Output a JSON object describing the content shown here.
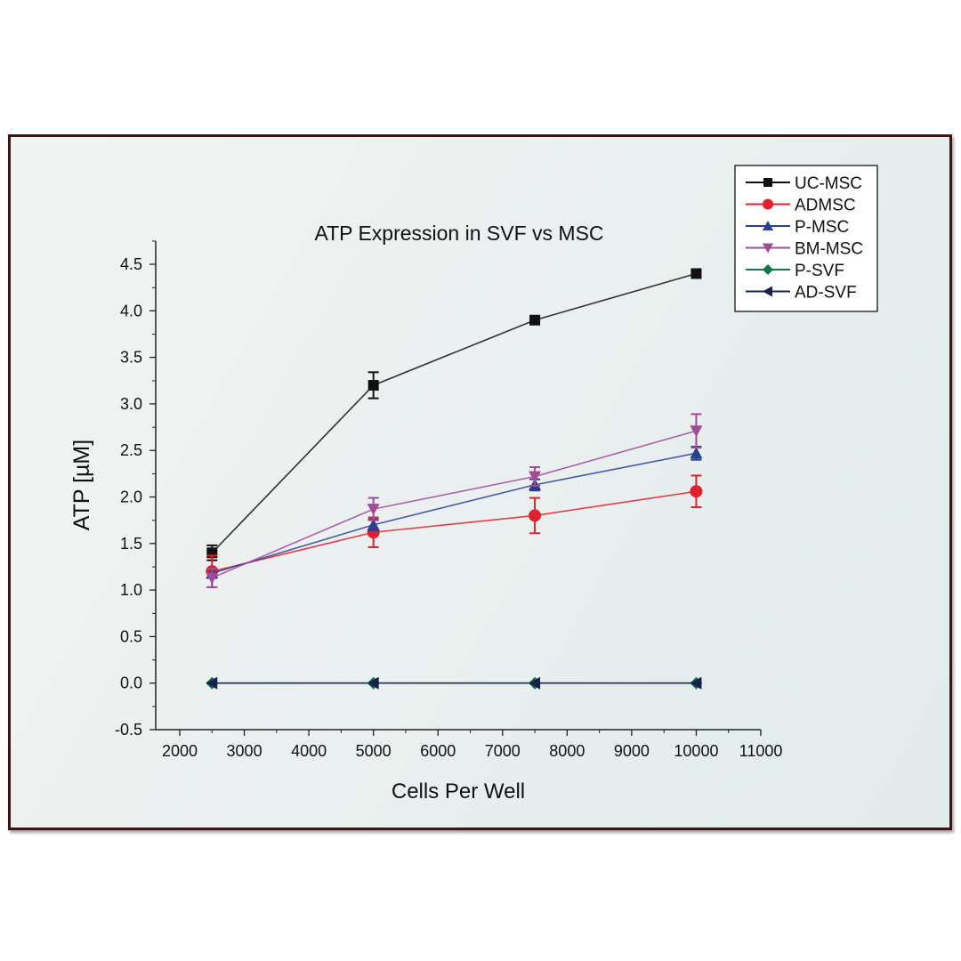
{
  "chart_data": {
    "type": "line",
    "title": "ATP Expression in SVF vs MSC",
    "xlabel": "Cells Per Well",
    "ylabel": "ATP [µM]",
    "xlim": [
      2000,
      11000
    ],
    "ylim": [
      -0.5,
      4.75
    ],
    "xticks": [
      2000,
      3000,
      4000,
      5000,
      6000,
      7000,
      8000,
      9000,
      10000,
      11000
    ],
    "yticks": [
      "-0.5",
      "0.0",
      "0.5",
      "1.0",
      "1.5",
      "2.0",
      "2.5",
      "3.0",
      "3.5",
      "4.0",
      "4.5"
    ],
    "grid": false,
    "legend_position": "top-right",
    "x": [
      2500,
      5000,
      7500,
      10000
    ],
    "series": [
      {
        "name": "UC-MSC",
        "color": "#111111",
        "marker": "square",
        "values": [
          1.4,
          3.2,
          3.9,
          4.4
        ],
        "errors": [
          0.08,
          0.14,
          0.02,
          0.02
        ]
      },
      {
        "name": "ADMSC",
        "color": "#e0202e",
        "marker": "circle",
        "values": [
          1.2,
          1.62,
          1.8,
          2.06
        ],
        "errors": [
          0.17,
          0.16,
          0.19,
          0.17
        ]
      },
      {
        "name": "P-MSC",
        "color": "#2a3f8f",
        "marker": "triangle-up",
        "values": [
          1.18,
          1.7,
          2.13,
          2.47
        ],
        "errors": [
          0.05,
          0.06,
          0.06,
          0.07
        ]
      },
      {
        "name": "BM-MSC",
        "color": "#a04a98",
        "marker": "triangle-down",
        "values": [
          1.13,
          1.87,
          2.22,
          2.71
        ],
        "errors": [
          0.1,
          0.12,
          0.1,
          0.18
        ]
      },
      {
        "name": "P-SVF",
        "color": "#0a7a48",
        "marker": "diamond",
        "values": [
          0,
          0,
          0,
          0
        ],
        "errors": [
          0,
          0,
          0,
          0
        ]
      },
      {
        "name": "AD-SVF",
        "color": "#18204e",
        "marker": "triangle-left",
        "values": [
          0,
          0,
          0,
          0
        ],
        "errors": [
          0,
          0,
          0,
          0
        ]
      }
    ]
  }
}
